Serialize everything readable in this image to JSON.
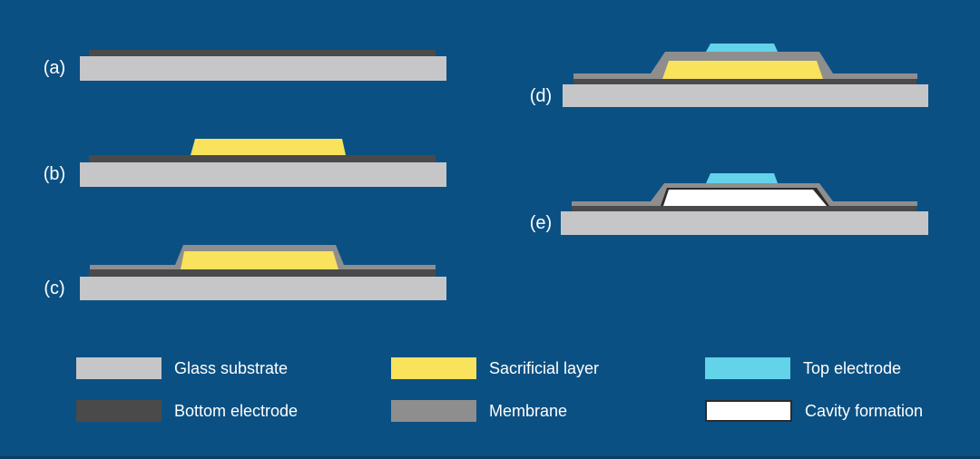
{
  "colors": {
    "bg": "#0b5083",
    "bg-edge": "#0a3e63",
    "text": "#ffffff",
    "substrate": "#c6c6c8",
    "electrode": "#4a4a4a",
    "sacrificial": "#f9e25c",
    "membrane": "#8e8e8e",
    "top-electrode": "#62d3e8",
    "cavity": "#ffffff",
    "cavity-border": "#2b2b2b"
  },
  "steps": [
    {
      "id": "a",
      "label": "(a)",
      "layers": [
        "glass-substrate",
        "bottom-electrode"
      ]
    },
    {
      "id": "b",
      "label": "(b)",
      "layers": [
        "glass-substrate",
        "bottom-electrode",
        "sacrificial-layer"
      ]
    },
    {
      "id": "c",
      "label": "(c)",
      "layers": [
        "glass-substrate",
        "bottom-electrode",
        "sacrificial-layer",
        "membrane"
      ]
    },
    {
      "id": "d",
      "label": "(d)",
      "layers": [
        "glass-substrate",
        "bottom-electrode",
        "sacrificial-layer",
        "membrane",
        "top-electrode"
      ]
    },
    {
      "id": "e",
      "label": "(e)",
      "layers": [
        "glass-substrate",
        "bottom-electrode",
        "membrane",
        "top-electrode",
        "cavity-formation"
      ]
    }
  ],
  "legend": {
    "items": [
      {
        "label": "Glass substrate",
        "color": "#c6c6c8"
      },
      {
        "label": "Bottom electrode",
        "color": "#4a4a4a"
      },
      {
        "label": "Sacrificial layer",
        "color": "#f9e25c"
      },
      {
        "label": "Membrane",
        "color": "#8e8e8e"
      },
      {
        "label": "Top electrode",
        "color": "#62d3e8"
      },
      {
        "label": "Cavity formation",
        "color": "#ffffff",
        "border": "#2b2b2b"
      }
    ]
  }
}
